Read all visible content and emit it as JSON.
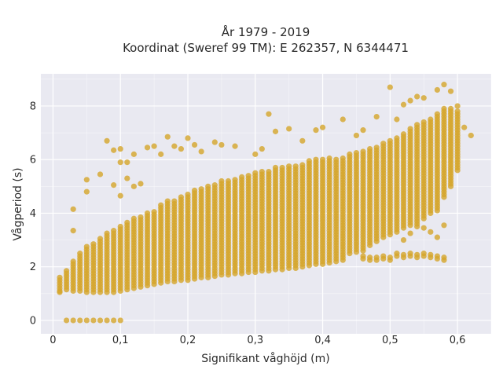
{
  "chart_data": {
    "type": "scatter",
    "title": "År 1979 - 2019",
    "subtitle": "Koordinat (Sweref 99 TM): E 262357, N 6344471",
    "xlabel": "Signifikant våghöjd (m)",
    "ylabel": "Vågperiod (s)",
    "xlim": [
      -0.018,
      0.65
    ],
    "ylim": [
      -0.5,
      9.2
    ],
    "x_ticks": [
      0,
      0.1,
      0.2,
      0.3,
      0.4,
      0.5,
      0.6
    ],
    "x_tick_labels": [
      "0",
      "0,1",
      "0,2",
      "0,3",
      "0,4",
      "0,5",
      "0,6"
    ],
    "y_ticks": [
      0,
      2,
      4,
      6,
      8
    ],
    "y_tick_labels": [
      "0",
      "2",
      "4",
      "6",
      "8"
    ],
    "grid": true,
    "colors": {
      "marker": "#d4a52a",
      "plot_bg": "#e9e9f1",
      "grid": "#ffffff",
      "paper": "#ffffff"
    },
    "series": [
      {
        "columns": [
          [
            0.01,
            1.1,
            1.6
          ],
          [
            0.02,
            1.15,
            1.8
          ],
          [
            0.03,
            1.1,
            2.2
          ],
          [
            0.04,
            1.1,
            2.5
          ],
          [
            0.05,
            1.05,
            2.75
          ],
          [
            0.06,
            1.05,
            2.85
          ],
          [
            0.07,
            1.05,
            3.0
          ],
          [
            0.08,
            1.05,
            3.2
          ],
          [
            0.09,
            1.05,
            3.4
          ],
          [
            0.1,
            1.1,
            3.5
          ],
          [
            0.11,
            1.15,
            3.6
          ],
          [
            0.12,
            1.2,
            3.8
          ],
          [
            0.13,
            1.25,
            3.9
          ],
          [
            0.14,
            1.3,
            4.0
          ],
          [
            0.15,
            1.35,
            4.1
          ],
          [
            0.16,
            1.4,
            4.3
          ],
          [
            0.17,
            1.45,
            4.4
          ],
          [
            0.18,
            1.45,
            4.5
          ],
          [
            0.19,
            1.5,
            4.6
          ],
          [
            0.2,
            1.5,
            4.7
          ],
          [
            0.21,
            1.55,
            4.8
          ],
          [
            0.22,
            1.6,
            4.9
          ],
          [
            0.23,
            1.6,
            5.0
          ],
          [
            0.24,
            1.65,
            5.1
          ],
          [
            0.25,
            1.7,
            5.2
          ],
          [
            0.26,
            1.7,
            5.25
          ],
          [
            0.27,
            1.75,
            5.3
          ],
          [
            0.28,
            1.75,
            5.35
          ],
          [
            0.29,
            1.8,
            5.4
          ],
          [
            0.3,
            1.8,
            5.5
          ],
          [
            0.31,
            1.85,
            5.55
          ],
          [
            0.32,
            1.85,
            5.6
          ],
          [
            0.33,
            1.9,
            5.65
          ],
          [
            0.34,
            1.9,
            5.7
          ],
          [
            0.35,
            1.95,
            5.75
          ],
          [
            0.36,
            1.95,
            5.8
          ],
          [
            0.37,
            2.0,
            5.85
          ],
          [
            0.38,
            2.05,
            5.9
          ],
          [
            0.39,
            2.1,
            5.95
          ],
          [
            0.4,
            2.1,
            6.0
          ],
          [
            0.41,
            2.15,
            6.0
          ],
          [
            0.42,
            2.2,
            6.05
          ],
          [
            0.43,
            2.25,
            6.1
          ],
          [
            0.44,
            2.5,
            6.15
          ],
          [
            0.45,
            2.55,
            6.2
          ],
          [
            0.46,
            2.6,
            6.3
          ],
          [
            0.47,
            2.8,
            6.4
          ],
          [
            0.48,
            2.95,
            6.5
          ],
          [
            0.49,
            3.1,
            6.6
          ],
          [
            0.5,
            3.2,
            6.7
          ],
          [
            0.51,
            3.3,
            6.85
          ],
          [
            0.52,
            3.45,
            7.0
          ],
          [
            0.53,
            3.55,
            7.15
          ],
          [
            0.54,
            3.6,
            7.3
          ],
          [
            0.55,
            3.8,
            7.4
          ],
          [
            0.56,
            4.0,
            7.5
          ],
          [
            0.57,
            4.1,
            7.7
          ],
          [
            0.58,
            4.6,
            7.9
          ],
          [
            0.59,
            5.0,
            7.9
          ],
          [
            0.6,
            5.6,
            7.8
          ]
        ],
        "zero_points": [
          0.02,
          0.03,
          0.04,
          0.05,
          0.06,
          0.07,
          0.08,
          0.09,
          0.1
        ],
        "low_band": [
          [
            0.46,
            2.4
          ],
          [
            0.47,
            2.35
          ],
          [
            0.48,
            2.35
          ],
          [
            0.49,
            2.4
          ],
          [
            0.5,
            2.35
          ],
          [
            0.51,
            2.5
          ],
          [
            0.52,
            2.45
          ],
          [
            0.53,
            2.5
          ],
          [
            0.54,
            2.45
          ],
          [
            0.55,
            2.5
          ],
          [
            0.56,
            2.45
          ],
          [
            0.57,
            2.4
          ],
          [
            0.58,
            2.35
          ]
        ],
        "scattered": [
          [
            0.08,
            6.7
          ],
          [
            0.09,
            6.35
          ],
          [
            0.1,
            6.4
          ],
          [
            0.1,
            5.9
          ],
          [
            0.11,
            5.9
          ],
          [
            0.12,
            6.2
          ],
          [
            0.14,
            6.45
          ],
          [
            0.15,
            6.5
          ],
          [
            0.16,
            6.2
          ],
          [
            0.17,
            6.85
          ],
          [
            0.18,
            6.5
          ],
          [
            0.19,
            6.4
          ],
          [
            0.2,
            6.8
          ],
          [
            0.21,
            6.55
          ],
          [
            0.22,
            6.3
          ],
          [
            0.24,
            6.65
          ],
          [
            0.25,
            6.55
          ],
          [
            0.27,
            6.5
          ],
          [
            0.3,
            6.2
          ],
          [
            0.31,
            6.4
          ],
          [
            0.32,
            7.7
          ],
          [
            0.33,
            7.05
          ],
          [
            0.35,
            7.15
          ],
          [
            0.37,
            6.7
          ],
          [
            0.39,
            7.1
          ],
          [
            0.4,
            7.2
          ],
          [
            0.43,
            7.5
          ],
          [
            0.45,
            6.9
          ],
          [
            0.46,
            7.1
          ],
          [
            0.48,
            7.6
          ],
          [
            0.5,
            8.7
          ],
          [
            0.51,
            7.5
          ],
          [
            0.52,
            8.05
          ],
          [
            0.53,
            8.2
          ],
          [
            0.54,
            8.35
          ],
          [
            0.55,
            8.3
          ],
          [
            0.57,
            8.6
          ],
          [
            0.58,
            8.8
          ],
          [
            0.59,
            8.55
          ],
          [
            0.6,
            8.0
          ],
          [
            0.61,
            7.2
          ],
          [
            0.62,
            6.9
          ],
          [
            0.05,
            5.25
          ],
          [
            0.05,
            4.8
          ],
          [
            0.07,
            5.45
          ],
          [
            0.03,
            4.15
          ],
          [
            0.03,
            3.35
          ],
          [
            0.09,
            5.05
          ],
          [
            0.11,
            5.3
          ],
          [
            0.13,
            5.1
          ],
          [
            0.1,
            4.65
          ],
          [
            0.12,
            5.0
          ],
          [
            0.57,
            3.1
          ],
          [
            0.58,
            3.55
          ],
          [
            0.56,
            3.3
          ],
          [
            0.55,
            3.45
          ],
          [
            0.54,
            3.5
          ],
          [
            0.52,
            3.0
          ],
          [
            0.53,
            3.25
          ],
          [
            0.01,
            1.05
          ]
        ]
      }
    ]
  }
}
